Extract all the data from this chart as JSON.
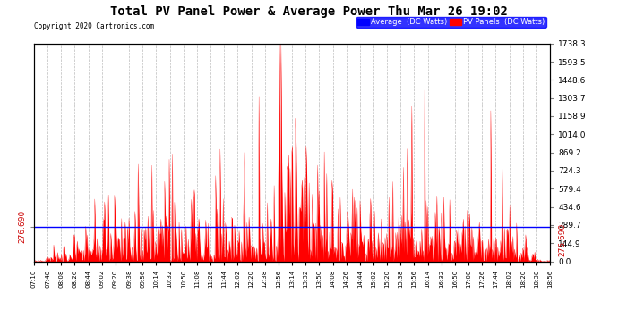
{
  "title": "Total PV Panel Power & Average Power Thu Mar 26 19:02",
  "copyright": "Copyright 2020 Cartronics.com",
  "legend_avg_label": "Average  (DC Watts)",
  "legend_pv_label": "PV Panels  (DC Watts)",
  "avg_value": 276.69,
  "ymax": 1738.3,
  "yticks": [
    0.0,
    144.9,
    289.7,
    434.6,
    579.4,
    724.3,
    869.2,
    1014.0,
    1158.9,
    1303.7,
    1448.6,
    1593.5,
    1738.3
  ],
  "right_ytick_labels": [
    "0.0",
    "144.9",
    "289.7",
    "434.6",
    "579.4",
    "724.3",
    "869.2",
    "1014.0",
    "1158.9",
    "1303.7",
    "1448.6",
    "1593.5",
    "1738.3"
  ],
  "background_color": "#ffffff",
  "plot_bg_color": "#ffffff",
  "grid_color": "#bbbbbb",
  "fill_color": "#ff0000",
  "avg_line_color": "#0000ff",
  "title_color": "#000000",
  "xtick_labels": [
    "07:10",
    "07:48",
    "08:08",
    "08:26",
    "08:44",
    "09:02",
    "09:20",
    "09:38",
    "09:56",
    "10:14",
    "10:32",
    "10:50",
    "11:08",
    "11:26",
    "11:44",
    "12:02",
    "12:20",
    "12:38",
    "12:56",
    "13:14",
    "13:32",
    "13:50",
    "14:08",
    "14:26",
    "14:44",
    "15:02",
    "15:20",
    "15:38",
    "15:56",
    "16:14",
    "16:32",
    "16:50",
    "17:08",
    "17:26",
    "17:44",
    "18:02",
    "18:20",
    "18:38",
    "18:56"
  ],
  "n_points": 680
}
